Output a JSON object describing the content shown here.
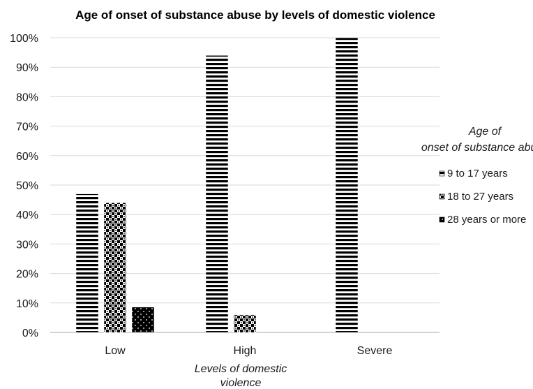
{
  "chart_data": {
    "type": "bar",
    "title": "Age of onset of substance abuse by levels of domestic violence",
    "xlabel": "Levels of domestic violence",
    "ylabel": "",
    "categories": [
      "Low",
      "High",
      "Severe"
    ],
    "ylim": [
      0,
      100
    ],
    "yticks": [
      "0%",
      "10%",
      "20%",
      "30%",
      "40%",
      "50%",
      "60%",
      "70%",
      "80%",
      "90%",
      "100%"
    ],
    "grid": true,
    "legend": {
      "title": "Age of onset of substance abuse",
      "placement": "right"
    },
    "series": [
      {
        "name": "9 to 17 years",
        "values": [
          47,
          94,
          100
        ],
        "pattern": "horizontal-stripes"
      },
      {
        "name": "18 to 27 years",
        "values": [
          44,
          6,
          0
        ],
        "pattern": "checker"
      },
      {
        "name": "28 years or more",
        "values": [
          8.6,
          0,
          0
        ],
        "pattern": "dots-on-black"
      }
    ],
    "colors": {
      "bar": "#000000",
      "background": "#ffffff",
      "grid": "#d9d9d9"
    }
  }
}
